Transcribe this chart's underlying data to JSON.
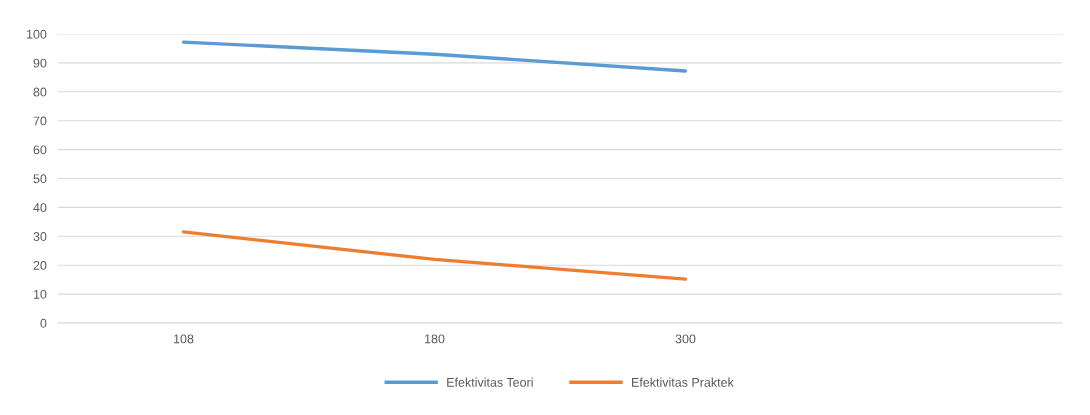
{
  "chart_data": {
    "type": "line",
    "categories": [
      "108",
      "180",
      "300",
      null
    ],
    "series": [
      {
        "name": "Efektivitas Teori",
        "color": "#5b9bd5",
        "values": [
          97.2,
          93,
          87.2,
          null
        ]
      },
      {
        "name": "Efektivitas Praktek",
        "color": "#ed7d31",
        "values": [
          31.5,
          22,
          15.2,
          null
        ]
      }
    ],
    "ylim": [
      0,
      100
    ],
    "yticks": [
      0,
      10,
      20,
      30,
      40,
      50,
      60,
      70,
      80,
      90,
      100
    ],
    "grid": "y",
    "legend": "bottom",
    "marker": "none",
    "line_style": "solid"
  }
}
